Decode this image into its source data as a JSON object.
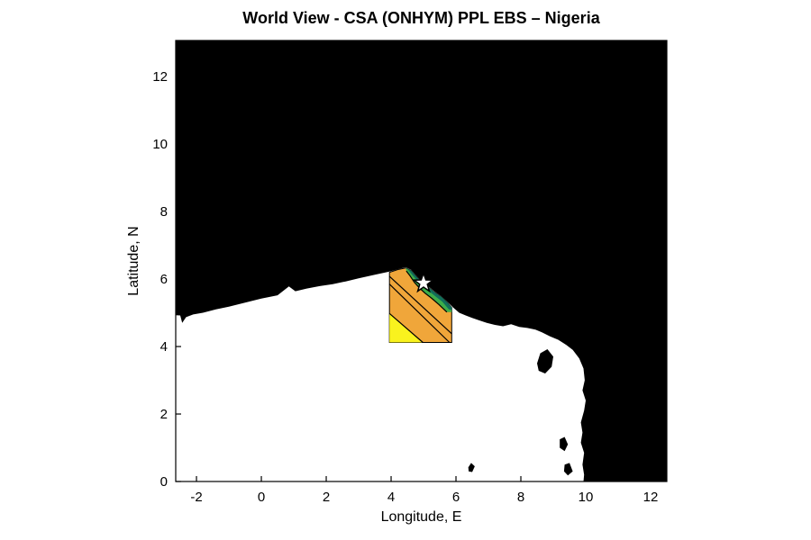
{
  "title": "World View - CSA (ONHYM) PPL EBS  – Nigeria",
  "axes": {
    "xlabel": "Longitude, E",
    "ylabel": "Latitude, N",
    "xlim": [
      -2.64,
      12.5
    ],
    "ylim": [
      0,
      13.07
    ],
    "xticks": [
      -2,
      0,
      2,
      4,
      6,
      8,
      10,
      12
    ],
    "yticks": [
      0,
      2,
      4,
      6,
      8,
      10,
      12
    ]
  },
  "colors": {
    "land": "#000000",
    "ocean": "#ffffff",
    "patch_orange": "#F0A63A",
    "patch_yellow": "#F9F21E",
    "patch_green": "#3DAE49",
    "patch_teal": "#116E5B",
    "contour": "#000000",
    "star_fill": "#ffffff",
    "star_edge": "#000000",
    "axis": "#000000"
  },
  "chart_data": {
    "type": "map-contour",
    "title": "World View - CSA (ONHYM) PPL EBS  – Nigeria",
    "xlabel": "Longitude, E",
    "ylabel": "Latitude, N",
    "xlim": [
      -2.64,
      12.5
    ],
    "ylim": [
      0,
      13.07
    ],
    "region_patch_bounds": {
      "lon_range": [
        3.95,
        5.87
      ],
      "lat_range": [
        4.12,
        6.35
      ]
    },
    "marker": {
      "type": "star",
      "lon": 5.0,
      "lat": 5.88
    },
    "coastline": [
      [
        -2.64,
        4.93
      ],
      [
        -2.5,
        4.92
      ],
      [
        -2.44,
        4.7
      ],
      [
        -2.32,
        4.87
      ],
      [
        -2.1,
        4.95
      ],
      [
        -1.8,
        5.0
      ],
      [
        -1.4,
        5.1
      ],
      [
        -1.0,
        5.18
      ],
      [
        -0.5,
        5.3
      ],
      [
        0.0,
        5.42
      ],
      [
        0.5,
        5.52
      ],
      [
        0.85,
        5.78
      ],
      [
        1.05,
        5.64
      ],
      [
        1.4,
        5.72
      ],
      [
        1.8,
        5.79
      ],
      [
        2.2,
        5.85
      ],
      [
        2.6,
        5.93
      ],
      [
        3.0,
        6.02
      ],
      [
        3.5,
        6.13
      ],
      [
        3.95,
        6.22
      ],
      [
        4.2,
        6.29
      ],
      [
        4.45,
        6.35
      ],
      [
        4.62,
        6.27
      ],
      [
        4.8,
        6.07
      ],
      [
        4.95,
        5.92
      ],
      [
        5.15,
        5.78
      ],
      [
        5.35,
        5.62
      ],
      [
        5.55,
        5.49
      ],
      [
        5.75,
        5.31
      ],
      [
        5.9,
        5.17
      ],
      [
        6.1,
        5.0
      ],
      [
        6.3,
        4.92
      ],
      [
        6.5,
        4.85
      ],
      [
        6.7,
        4.78
      ],
      [
        6.95,
        4.7
      ],
      [
        7.2,
        4.64
      ],
      [
        7.45,
        4.6
      ],
      [
        7.7,
        4.66
      ],
      [
        7.95,
        4.58
      ],
      [
        8.2,
        4.55
      ],
      [
        8.45,
        4.5
      ],
      [
        8.65,
        4.42
      ],
      [
        8.9,
        4.3
      ],
      [
        9.15,
        4.2
      ],
      [
        9.4,
        4.05
      ],
      [
        9.6,
        3.9
      ],
      [
        9.8,
        3.65
      ],
      [
        9.93,
        3.35
      ],
      [
        9.97,
        3.0
      ],
      [
        9.9,
        2.7
      ],
      [
        10.0,
        2.4
      ],
      [
        9.95,
        2.1
      ],
      [
        9.85,
        1.75
      ],
      [
        9.9,
        1.45
      ],
      [
        9.85,
        1.15
      ],
      [
        9.95,
        0.85
      ],
      [
        9.9,
        0.5
      ],
      [
        9.95,
        0.2
      ],
      [
        9.93,
        0.0
      ]
    ],
    "land_close": [
      [
        12.5,
        0
      ],
      [
        12.5,
        13.07
      ],
      [
        -2.64,
        13.07
      ]
    ],
    "islands": [
      [
        [
          8.5,
          3.5
        ],
        [
          8.6,
          3.8
        ],
        [
          8.82,
          3.92
        ],
        [
          9.0,
          3.7
        ],
        [
          8.95,
          3.4
        ],
        [
          8.75,
          3.2
        ],
        [
          8.55,
          3.28
        ]
      ],
      [
        [
          6.38,
          0.42
        ],
        [
          6.47,
          0.55
        ],
        [
          6.58,
          0.45
        ],
        [
          6.5,
          0.28
        ],
        [
          6.39,
          0.3
        ]
      ],
      [
        [
          9.2,
          1.25
        ],
        [
          9.35,
          1.32
        ],
        [
          9.45,
          1.1
        ],
        [
          9.35,
          0.9
        ],
        [
          9.2,
          1.0
        ]
      ],
      [
        [
          9.35,
          0.5
        ],
        [
          9.5,
          0.55
        ],
        [
          9.6,
          0.3
        ],
        [
          9.45,
          0.18
        ],
        [
          9.33,
          0.3
        ]
      ]
    ],
    "patch_base": [
      [
        3.95,
        6.2
      ],
      [
        4.2,
        6.28
      ],
      [
        4.45,
        6.33
      ],
      [
        4.62,
        6.25
      ],
      [
        4.8,
        6.05
      ],
      [
        4.95,
        5.9
      ],
      [
        5.15,
        5.76
      ],
      [
        5.35,
        5.6
      ],
      [
        5.55,
        5.47
      ],
      [
        5.75,
        5.29
      ],
      [
        5.87,
        5.15
      ],
      [
        5.87,
        4.12
      ],
      [
        3.95,
        4.12
      ]
    ],
    "yellow_zone": [
      [
        3.95,
        4.98
      ],
      [
        4.98,
        4.12
      ],
      [
        3.95,
        4.12
      ]
    ],
    "green_band": [
      [
        4.45,
        6.33
      ],
      [
        4.62,
        6.25
      ],
      [
        4.8,
        6.05
      ],
      [
        4.95,
        5.9
      ],
      [
        5.15,
        5.76
      ],
      [
        5.35,
        5.6
      ],
      [
        5.55,
        5.47
      ],
      [
        5.75,
        5.29
      ],
      [
        5.87,
        5.15
      ],
      [
        5.87,
        5.02
      ],
      [
        5.72,
        5.02
      ],
      [
        5.48,
        5.24
      ],
      [
        5.25,
        5.43
      ],
      [
        5.05,
        5.58
      ],
      [
        4.88,
        5.73
      ],
      [
        4.72,
        5.9
      ],
      [
        4.58,
        6.1
      ],
      [
        4.47,
        6.24
      ]
    ],
    "teal_band": [
      [
        4.45,
        6.33
      ],
      [
        4.62,
        6.25
      ],
      [
        4.8,
        6.05
      ],
      [
        4.95,
        5.9
      ],
      [
        5.15,
        5.76
      ],
      [
        5.35,
        5.6
      ],
      [
        5.55,
        5.47
      ],
      [
        5.75,
        5.29
      ],
      [
        5.87,
        5.15
      ],
      [
        5.87,
        5.08
      ],
      [
        5.78,
        5.1
      ],
      [
        5.58,
        5.33
      ],
      [
        5.38,
        5.48
      ],
      [
        5.18,
        5.63
      ],
      [
        4.98,
        5.78
      ],
      [
        4.83,
        5.93
      ],
      [
        4.67,
        6.1
      ],
      [
        4.52,
        6.28
      ]
    ],
    "contour_lines": [
      [
        [
          3.95,
          4.98
        ],
        [
          4.98,
          4.12
        ]
      ],
      [
        [
          3.95,
          5.85
        ],
        [
          5.8,
          4.12
        ]
      ],
      [
        [
          3.95,
          6.08
        ],
        [
          5.87,
          4.38
        ]
      ],
      [
        [
          4.47,
          6.24
        ],
        [
          4.58,
          6.1
        ],
        [
          4.72,
          5.9
        ],
        [
          4.88,
          5.73
        ],
        [
          5.05,
          5.58
        ],
        [
          5.25,
          5.43
        ],
        [
          5.48,
          5.24
        ],
        [
          5.72,
          5.02
        ]
      ]
    ]
  }
}
